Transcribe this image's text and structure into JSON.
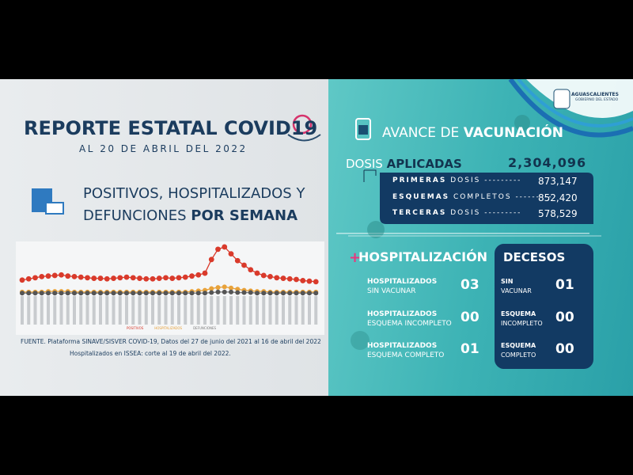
{
  "header": {
    "title": "REPORTE ESTATAL COVID19",
    "date": "AL 20 DE ABRIL DEL 2022"
  },
  "section_title": {
    "line1": "POSITIVOS, HOSPITALIZADOS Y",
    "line2_normal": "DEFUNCIONES",
    "line2_bold": "POR SEMANA"
  },
  "chart_data": {
    "type": "line",
    "series": [
      {
        "name": "POSITIVOS",
        "color": "#d93a2b",
        "values": [
          24,
          26,
          28,
          30,
          31,
          32,
          33,
          31,
          30,
          29,
          28,
          27,
          27,
          26,
          27,
          28,
          29,
          28,
          27,
          26,
          26,
          27,
          28,
          27,
          28,
          29,
          31,
          33,
          36,
          60,
          78,
          82,
          70,
          58,
          50,
          42,
          36,
          32,
          30,
          28,
          27,
          26,
          25,
          23,
          22,
          21
        ]
      },
      {
        "name": "HOSPITALIZADOS",
        "color": "#e8a23a",
        "values": [
          3,
          3,
          3,
          3,
          4,
          4,
          4,
          4,
          3,
          3,
          3,
          3,
          3,
          3,
          3,
          3,
          3,
          3,
          3,
          3,
          3,
          3,
          3,
          3,
          3,
          3,
          4,
          5,
          6,
          9,
          11,
          12,
          10,
          8,
          6,
          5,
          4,
          4,
          3,
          3,
          3,
          3,
          3,
          3,
          3,
          3
        ]
      },
      {
        "name": "DEFUNCIONES",
        "color": "#7a7a7a",
        "values": [
          1,
          1,
          1,
          1,
          1,
          1,
          1,
          1,
          1,
          1,
          1,
          1,
          1,
          1,
          1,
          1,
          1,
          1,
          1,
          1,
          1,
          1,
          1,
          1,
          1,
          1,
          1,
          1,
          1,
          2,
          3,
          3,
          3,
          2,
          2,
          2,
          1,
          1,
          1,
          1,
          1,
          1,
          1,
          1,
          1,
          1
        ]
      }
    ]
  },
  "source": [
    "FUENTE. Plataforma SINAVE/SISVER COVID-19, Datos del 27 de junio del 2021 al 16 de abril del 2022",
    "Hospitalizados en ISSEA: corte al 19 de abril del 2022."
  ],
  "logo": {
    "name": "AGUASCALIENTES",
    "subtitle": "GOBIERNO DEL ESTADO"
  },
  "vaccination": {
    "title_normal": "AVANCE DE",
    "title_bold": "VACUNACIÓN",
    "total_label_normal": "DOSIS",
    "total_label_bold": "APLICADAS",
    "total": "2,304,096",
    "rows": [
      {
        "label_bold": "PRIMERAS",
        "label_rest": "DOSIS",
        "value": "873,147"
      },
      {
        "label_bold": "ESQUEMAS",
        "label_rest": "COMPLETOS",
        "value": "852,420"
      },
      {
        "label_bold": "TERCERAS",
        "label_rest": "DOSIS",
        "value": "578,529"
      }
    ]
  },
  "hospital": {
    "title": "HOSPITALIZACIÓN",
    "rows": [
      {
        "line1": "HOSPITALIZADOS",
        "line2": "SIN VACUNAR",
        "value": "03"
      },
      {
        "line1": "HOSPITALIZADOS",
        "line2": "ESQUEMA INCOMPLETO",
        "value": "00"
      },
      {
        "line1": "HOSPITALIZADOS",
        "line2": "ESQUEMA COMPLETO",
        "value": "01"
      }
    ]
  },
  "deaths": {
    "title": "DECESOS",
    "rows": [
      {
        "line1": "SIN",
        "line2": "VACUNAR",
        "value": "01"
      },
      {
        "line1": "ESQUEMA",
        "line2": "INCOMPLETO",
        "value": "00"
      },
      {
        "line1": "ESQUEMA",
        "line2": "COMPLETO",
        "value": "00"
      }
    ]
  }
}
